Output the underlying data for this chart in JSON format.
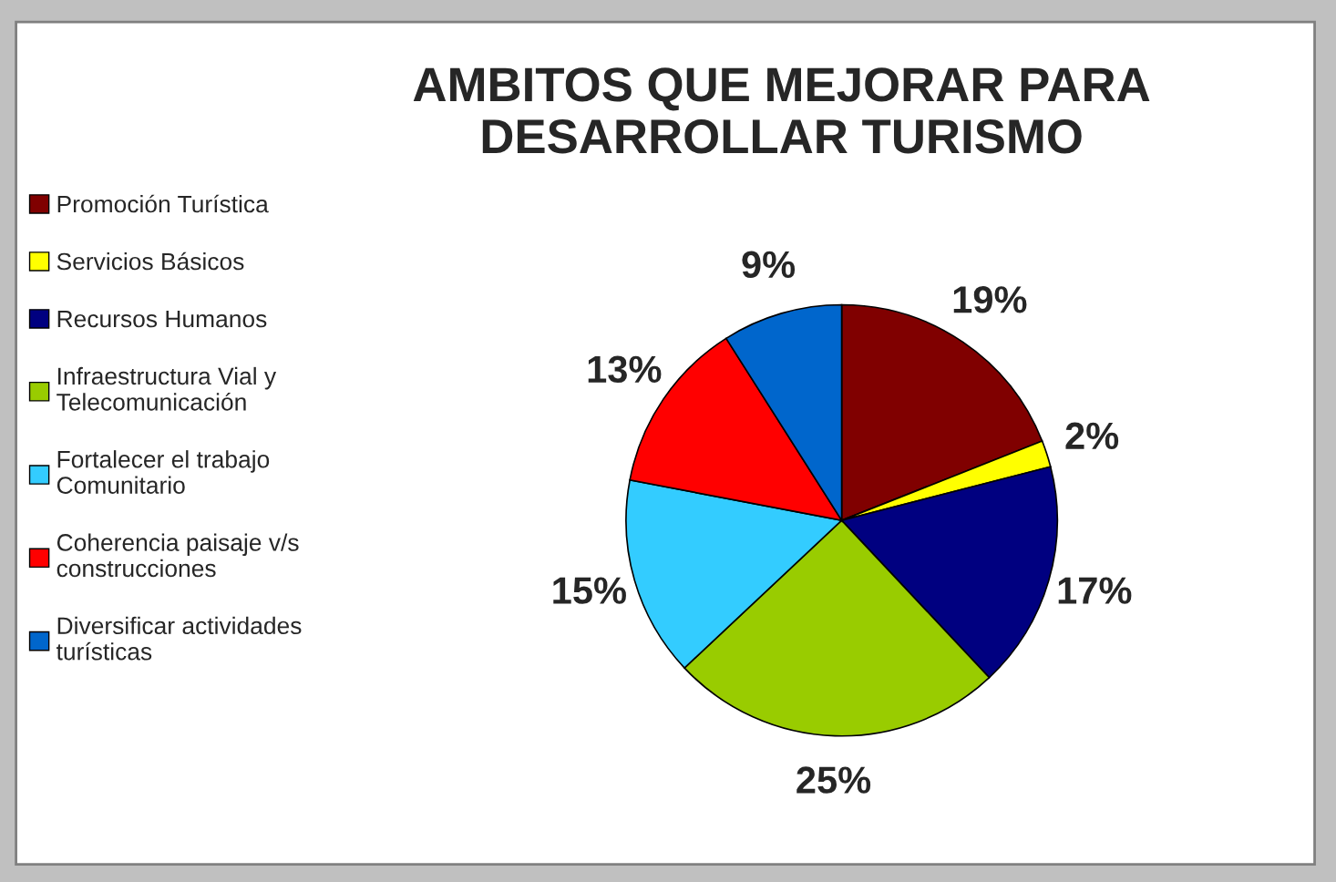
{
  "chart_data": {
    "type": "pie",
    "title": "AMBITOS QUE MEJORAR PARA\nDESARROLLAR TURISMO",
    "categories": [
      "Promoción Turística",
      "Servicios Básicos",
      "Recursos Humanos",
      "Infraestructura Vial y\nTelecomunicación",
      "Fortalecer el trabajo\nComunitario",
      "Coherencia paisaje v/s\nconstrucciones",
      "Diversificar actividades\nturísticas"
    ],
    "values": [
      19,
      2,
      17,
      25,
      15,
      13,
      9
    ],
    "value_labels": [
      "19%",
      "2%",
      "17%",
      "25%",
      "15%",
      "13%",
      "9%"
    ],
    "colors": [
      "#800000",
      "#ffff00",
      "#000080",
      "#99cc00",
      "#33ccff",
      "#ff0000",
      "#0066cc"
    ],
    "legend": "left"
  }
}
